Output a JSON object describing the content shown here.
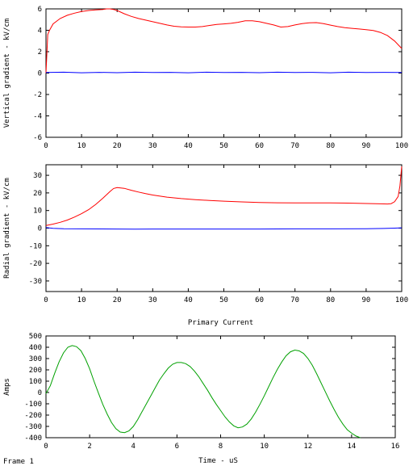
{
  "frame_label": "Frame 1",
  "chart_data": [
    {
      "type": "line",
      "title": "",
      "xlabel": "",
      "ylabel": "Vertical gradient - kV/cm",
      "xlim": [
        0,
        100
      ],
      "ylim": [
        -6,
        6
      ],
      "xticks": [
        0,
        10,
        20,
        30,
        40,
        50,
        60,
        70,
        80,
        90,
        100
      ],
      "yticks": [
        -6,
        -4,
        -2,
        0,
        2,
        4,
        6
      ],
      "grid": false,
      "series": [
        {
          "color": "#ff0000",
          "x": [
            0,
            0.5,
            1,
            2,
            4,
            6,
            8,
            10,
            12,
            14,
            16,
            17,
            18,
            19,
            20,
            22,
            24,
            26,
            28,
            30,
            32,
            34,
            36,
            38,
            40,
            42,
            44,
            46,
            48,
            50,
            52,
            54,
            56,
            58,
            60,
            62,
            64,
            66,
            68,
            70,
            72,
            74,
            76,
            78,
            80,
            82,
            84,
            86,
            88,
            90,
            92,
            94,
            96,
            98,
            100
          ],
          "y": [
            0,
            3.6,
            4.0,
            4.6,
            5.1,
            5.4,
            5.6,
            5.75,
            5.85,
            5.9,
            5.95,
            6.0,
            6.0,
            5.95,
            5.85,
            5.55,
            5.3,
            5.1,
            4.95,
            4.8,
            4.65,
            4.5,
            4.38,
            4.32,
            4.3,
            4.3,
            4.35,
            4.45,
            4.55,
            4.6,
            4.65,
            4.75,
            4.88,
            4.88,
            4.8,
            4.65,
            4.5,
            4.3,
            4.35,
            4.5,
            4.62,
            4.7,
            4.72,
            4.62,
            4.48,
            4.35,
            4.25,
            4.18,
            4.12,
            4.05,
            3.98,
            3.8,
            3.5,
            3.0,
            2.3
          ]
        },
        {
          "color": "#0000ff",
          "x": [
            0,
            5,
            10,
            15,
            20,
            25,
            30,
            35,
            40,
            45,
            50,
            55,
            60,
            65,
            70,
            75,
            80,
            85,
            90,
            95,
            100
          ],
          "y": [
            0.05,
            0.08,
            0.03,
            0.07,
            0.04,
            0.08,
            0.05,
            0.07,
            0.03,
            0.08,
            0.05,
            0.07,
            0.04,
            0.08,
            0.05,
            0.07,
            0.03,
            0.08,
            0.05,
            0.07,
            0.05
          ]
        }
      ]
    },
    {
      "type": "line",
      "title": "",
      "xlabel": "",
      "ylabel": "Radial gradient - kV/cm",
      "xlim": [
        0,
        100
      ],
      "ylim": [
        -36,
        36
      ],
      "xticks": [
        0,
        10,
        20,
        30,
        40,
        50,
        60,
        70,
        80,
        90,
        100
      ],
      "yticks": [
        -30,
        -20,
        -10,
        0,
        10,
        20,
        30
      ],
      "grid": false,
      "series": [
        {
          "color": "#ff0000",
          "x": [
            0,
            2,
            4,
            6,
            8,
            10,
            12,
            14,
            16,
            18,
            19,
            20,
            22,
            24,
            26,
            28,
            30,
            34,
            38,
            42,
            46,
            50,
            55,
            60,
            65,
            70,
            75,
            80,
            85,
            90,
            94,
            96,
            97,
            98,
            99,
            99.5,
            100
          ],
          "y": [
            1.5,
            2.3,
            3.3,
            4.6,
            6.3,
            8.2,
            10.5,
            13.5,
            17,
            20.8,
            22.5,
            23.0,
            22.6,
            21.5,
            20.5,
            19.6,
            18.8,
            17.6,
            16.8,
            16.2,
            15.7,
            15.3,
            14.9,
            14.6,
            14.4,
            14.3,
            14.3,
            14.3,
            14.2,
            14.0,
            13.8,
            13.7,
            13.9,
            15.0,
            18,
            24,
            35
          ]
        },
        {
          "color": "#0000ff",
          "x": [
            0,
            1,
            2,
            5,
            10,
            20,
            25,
            30,
            40,
            50,
            60,
            70,
            80,
            90,
            95,
            98,
            100
          ],
          "y": [
            0.3,
            0.1,
            -0.1,
            -0.3,
            -0.4,
            -0.5,
            -0.6,
            -0.5,
            -0.5,
            -0.5,
            -0.5,
            -0.4,
            -0.4,
            -0.3,
            -0.2,
            0.0,
            0.2
          ]
        }
      ]
    },
    {
      "type": "line",
      "title": "Primary Current",
      "xlabel": "Time - uS",
      "ylabel": "Amps",
      "xlim": [
        0,
        16
      ],
      "ylim": [
        -400,
        500
      ],
      "xticks": [
        0,
        2,
        4,
        6,
        8,
        10,
        12,
        14,
        16
      ],
      "yticks": [
        -400,
        -300,
        -200,
        -100,
        0,
        100,
        200,
        300,
        400,
        500
      ],
      "grid": false,
      "series": [
        {
          "color": "#00a000",
          "x": [
            0,
            0.2,
            0.4,
            0.6,
            0.8,
            1.0,
            1.2,
            1.4,
            1.6,
            1.8,
            2.0,
            2.2,
            2.4,
            2.6,
            2.8,
            3.0,
            3.2,
            3.4,
            3.6,
            3.8,
            4.0,
            4.2,
            4.4,
            4.6,
            4.8,
            5.0,
            5.2,
            5.4,
            5.6,
            5.8,
            6.0,
            6.2,
            6.4,
            6.6,
            6.8,
            7.0,
            7.2,
            7.4,
            7.6,
            7.8,
            8.0,
            8.2,
            8.4,
            8.6,
            8.8,
            9.0,
            9.2,
            9.4,
            9.6,
            9.8,
            10.0,
            10.2,
            10.4,
            10.6,
            10.8,
            11.0,
            11.2,
            11.4,
            11.6,
            11.8,
            12.0,
            12.2,
            12.4,
            12.6,
            12.8,
            13.0,
            13.2,
            13.4,
            13.6,
            13.8,
            14.0,
            14.2,
            14.4
          ],
          "y": [
            -10,
            60,
            170,
            270,
            350,
            400,
            415,
            405,
            370,
            300,
            210,
            100,
            -5,
            -105,
            -190,
            -265,
            -320,
            -350,
            -355,
            -340,
            -300,
            -240,
            -170,
            -100,
            -30,
            40,
            110,
            165,
            215,
            250,
            265,
            265,
            255,
            230,
            190,
            140,
            80,
            20,
            -45,
            -105,
            -160,
            -215,
            -260,
            -295,
            -312,
            -305,
            -280,
            -235,
            -175,
            -105,
            -30,
            50,
            130,
            205,
            270,
            325,
            360,
            375,
            368,
            345,
            300,
            240,
            165,
            85,
            5,
            -75,
            -150,
            -220,
            -280,
            -330,
            -360,
            -385,
            -400
          ]
        }
      ]
    }
  ]
}
